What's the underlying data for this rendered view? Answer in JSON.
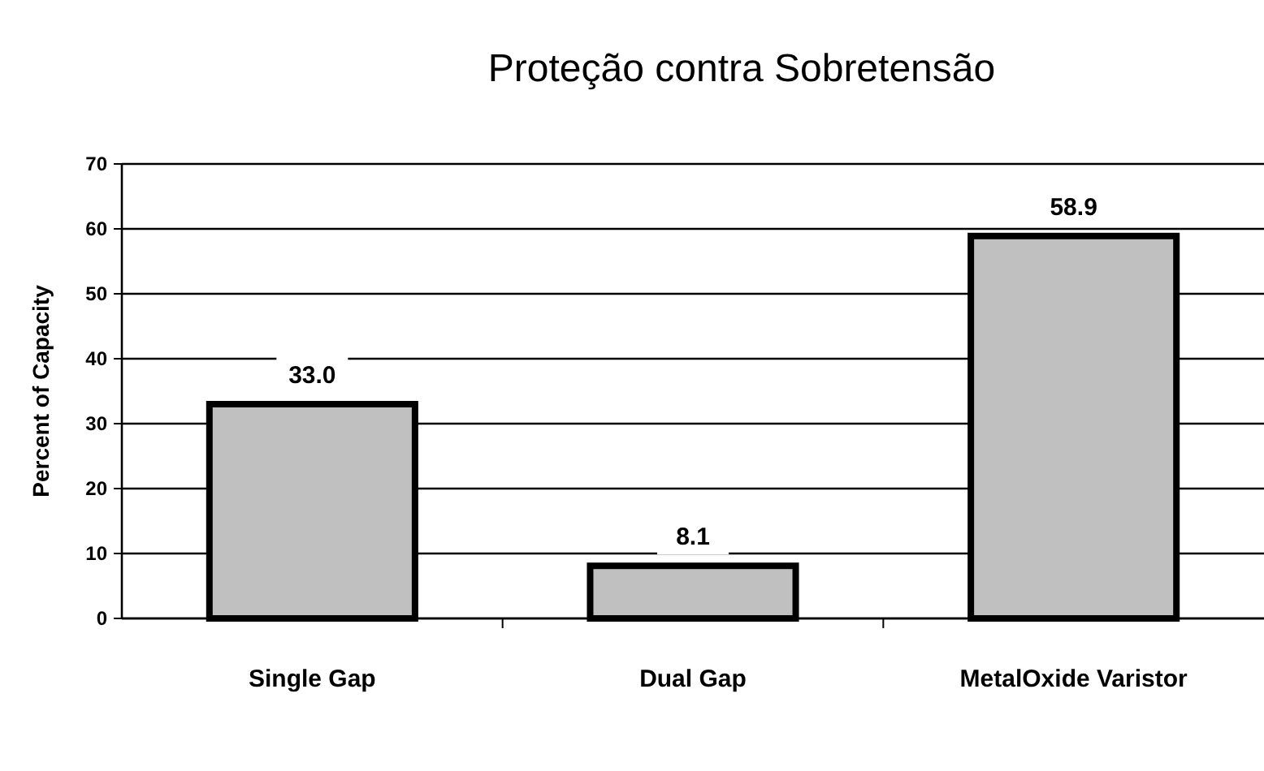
{
  "chart_data": {
    "type": "bar",
    "title": "Proteção contra Sobretensão",
    "ylabel": "Percent of Capacity",
    "categories": [
      "Single Gap",
      "Dual Gap",
      "MetalOxide Varistor"
    ],
    "values": [
      33.0,
      8.1,
      58.9
    ],
    "color": "#c0c0c0",
    "ylim": [
      0,
      70
    ],
    "yticks": [
      0,
      10,
      20,
      30,
      40,
      50,
      60,
      70
    ],
    "grid": "y",
    "value_labels": [
      "33.0",
      "8.1",
      "58.9"
    ]
  }
}
